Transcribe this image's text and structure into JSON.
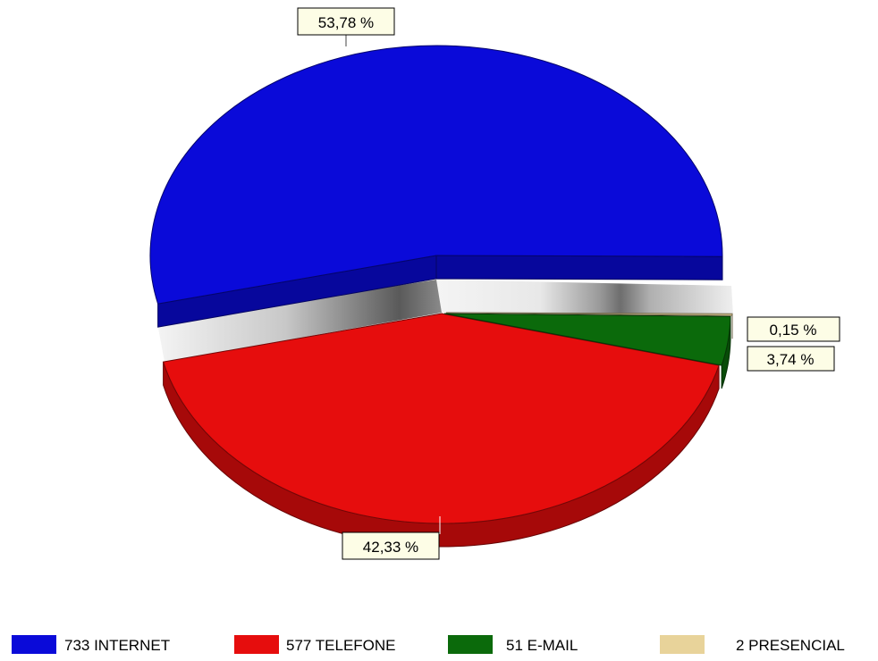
{
  "chart_data": {
    "type": "pie",
    "style": "3d-exploded",
    "legend_position": "bottom",
    "slices": [
      {
        "label": "733 INTERNET",
        "value": 733,
        "percent_label": "53,78 %",
        "color": "#0a0ad9"
      },
      {
        "label": "577 TELEFONE",
        "value": 577,
        "percent_label": "42,33 %",
        "color": "#e60d0d"
      },
      {
        "label": "51 E-MAIL",
        "value": 51,
        "percent_label": "3,74 %",
        "color": "#0b6a0b"
      },
      {
        "label": "2 PRESENCIAL",
        "value": 2,
        "percent_label": "0,15 %",
        "color": "#e8d39a"
      }
    ]
  }
}
